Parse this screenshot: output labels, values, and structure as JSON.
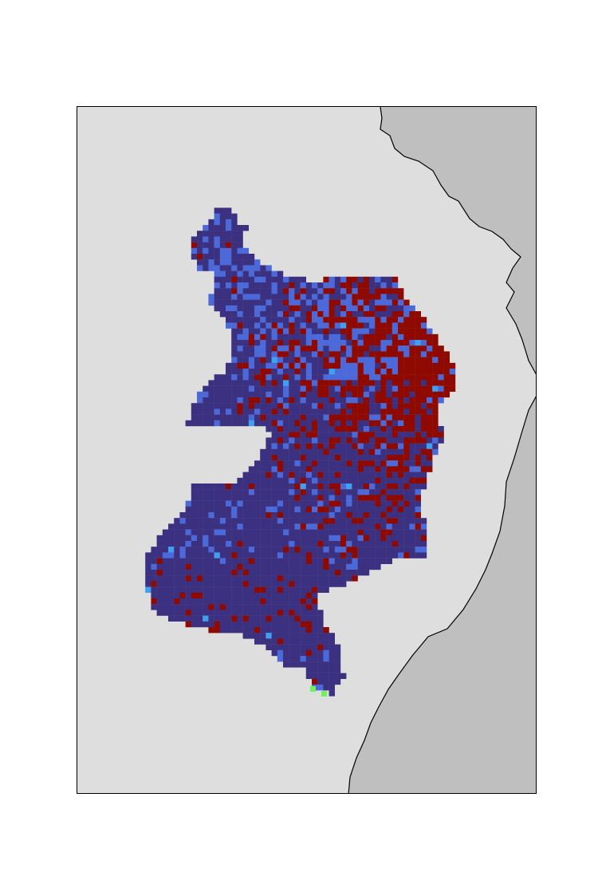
{
  "map": {
    "type": "categorical-raster",
    "colors": {
      "land": "#dedede",
      "ocean": "#bfbfbf",
      "coastline": "#000000",
      "classes": [
        "#3b3180",
        "#8e0a00",
        "#4b69d8",
        "#3fa0ef",
        "#6ef25a"
      ]
    }
  }
}
